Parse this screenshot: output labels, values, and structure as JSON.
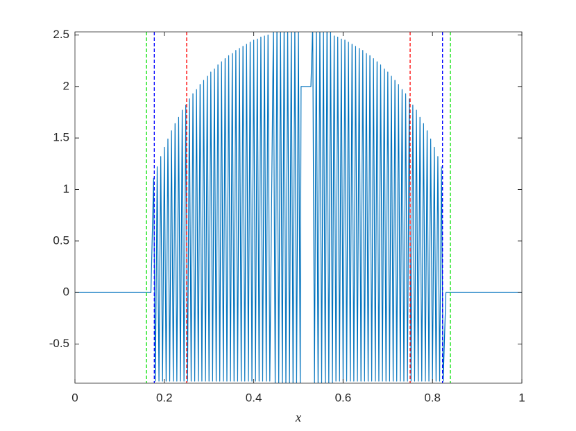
{
  "chart_data": {
    "type": "line",
    "xlabel": "x",
    "x": [
      0,
      0.17,
      0.176,
      0.18,
      0.184,
      0.188,
      0.192,
      0.196,
      0.2,
      0.204,
      0.208,
      0.212,
      0.216,
      0.22,
      0.224,
      0.228,
      0.232,
      0.236,
      0.24,
      0.244,
      0.248,
      0.252,
      0.256,
      0.26,
      0.264,
      0.268,
      0.272,
      0.276,
      0.28,
      0.284,
      0.288,
      0.292,
      0.296,
      0.3,
      0.304,
      0.308,
      0.312,
      0.316,
      0.32,
      0.324,
      0.328,
      0.332,
      0.336,
      0.34,
      0.344,
      0.348,
      0.352,
      0.356,
      0.36,
      0.364,
      0.368,
      0.372,
      0.376,
      0.38,
      0.384,
      0.388,
      0.392,
      0.396,
      0.4,
      0.404,
      0.408,
      0.412,
      0.416,
      0.42,
      0.424,
      0.428,
      0.432,
      0.436,
      0.444,
      0.448,
      0.452,
      0.456,
      0.46,
      0.464,
      0.468,
      0.472,
      0.476,
      0.48,
      0.484,
      0.488,
      0.492,
      0.496,
      0.5,
      0.504,
      0.506,
      0.528,
      0.532,
      0.536,
      0.54,
      0.544,
      0.548,
      0.552,
      0.556,
      0.56,
      0.564,
      0.568,
      0.572,
      0.576,
      0.58,
      0.584,
      0.588,
      0.592,
      0.596,
      0.6,
      0.604,
      0.608,
      0.612,
      0.616,
      0.62,
      0.624,
      0.628,
      0.632,
      0.636,
      0.64,
      0.644,
      0.648,
      0.652,
      0.656,
      0.66,
      0.664,
      0.668,
      0.672,
      0.676,
      0.68,
      0.684,
      0.688,
      0.692,
      0.696,
      0.7,
      0.704,
      0.708,
      0.712,
      0.716,
      0.72,
      0.724,
      0.728,
      0.732,
      0.736,
      0.74,
      0.744,
      0.748,
      0.752,
      0.756,
      0.76,
      0.764,
      0.768,
      0.772,
      0.776,
      0.78,
      0.784,
      0.788,
      0.792,
      0.796,
      0.8,
      0.804,
      0.808,
      0.812,
      0.816,
      0.82,
      0.824,
      0.83,
      1
    ],
    "series": [
      {
        "color": "#0072bd",
        "values": [
          0,
          0,
          1.11,
          -0.86,
          1.22,
          -0.86,
          1.32,
          -0.86,
          1.41,
          -0.86,
          1.49,
          -0.86,
          1.57,
          -0.86,
          1.64,
          -0.86,
          1.7,
          -0.86,
          1.77,
          -0.86,
          1.82,
          -0.86,
          1.88,
          -0.86,
          1.93,
          -0.86,
          1.97,
          -0.86,
          2.02,
          -0.86,
          2.06,
          -0.86,
          2.1,
          -0.86,
          2.14,
          -0.86,
          2.17,
          -0.86,
          2.21,
          -0.86,
          2.24,
          -0.86,
          2.27,
          -0.86,
          2.3,
          -0.86,
          2.32,
          -0.86,
          2.35,
          -0.86,
          2.37,
          -0.86,
          2.39,
          -0.86,
          2.41,
          -0.86,
          2.43,
          -0.86,
          2.45,
          -0.86,
          2.46,
          -0.86,
          2.48,
          -0.86,
          2.49,
          -0.86,
          2.5,
          -0.86,
          2.6,
          -0.9,
          2.6,
          -0.9,
          2.6,
          -0.9,
          2.6,
          -0.9,
          2.6,
          -0.9,
          2.6,
          -0.9,
          2.6,
          -0.9,
          2.6,
          -0.9,
          2,
          2,
          2.6,
          -0.9,
          2.6,
          -0.9,
          2.6,
          -0.9,
          2.6,
          -0.9,
          2.6,
          -0.9,
          2.6,
          -0.9,
          2.49,
          -0.86,
          2.48,
          -0.86,
          2.46,
          -0.86,
          2.45,
          -0.86,
          2.43,
          -0.86,
          2.41,
          -0.86,
          2.39,
          -0.86,
          2.37,
          -0.86,
          2.35,
          -0.86,
          2.32,
          -0.86,
          2.3,
          -0.86,
          2.27,
          -0.86,
          2.24,
          -0.86,
          2.21,
          -0.86,
          2.17,
          -0.86,
          2.14,
          -0.86,
          2.1,
          -0.86,
          2.06,
          -0.86,
          2.02,
          -0.86,
          1.97,
          -0.86,
          1.93,
          -0.86,
          1.88,
          -0.86,
          1.82,
          -0.86,
          1.77,
          -0.86,
          1.7,
          -0.86,
          1.64,
          -0.86,
          1.57,
          -0.86,
          1.49,
          -0.86,
          1.41,
          -0.86,
          1.32,
          -0.86,
          1.22,
          -0.86,
          0,
          0
        ]
      }
    ],
    "vlines": [
      {
        "x": 0.16,
        "color": "#00e000"
      },
      {
        "x": 0.84,
        "color": "#00e000"
      },
      {
        "x": 0.1775,
        "color": "#0000ff"
      },
      {
        "x": 0.8225,
        "color": "#0000ff"
      },
      {
        "x": 0.25,
        "color": "#ff0000"
      },
      {
        "x": 0.75,
        "color": "#ff0000"
      }
    ],
    "xlim": [
      0,
      1
    ],
    "ylim": [
      -0.88,
      2.53
    ],
    "xticks": [
      0,
      0.2,
      0.4,
      0.6,
      0.8,
      1
    ],
    "yticks": [
      -0.5,
      0,
      0.5,
      1,
      1.5,
      2,
      2.5
    ]
  }
}
